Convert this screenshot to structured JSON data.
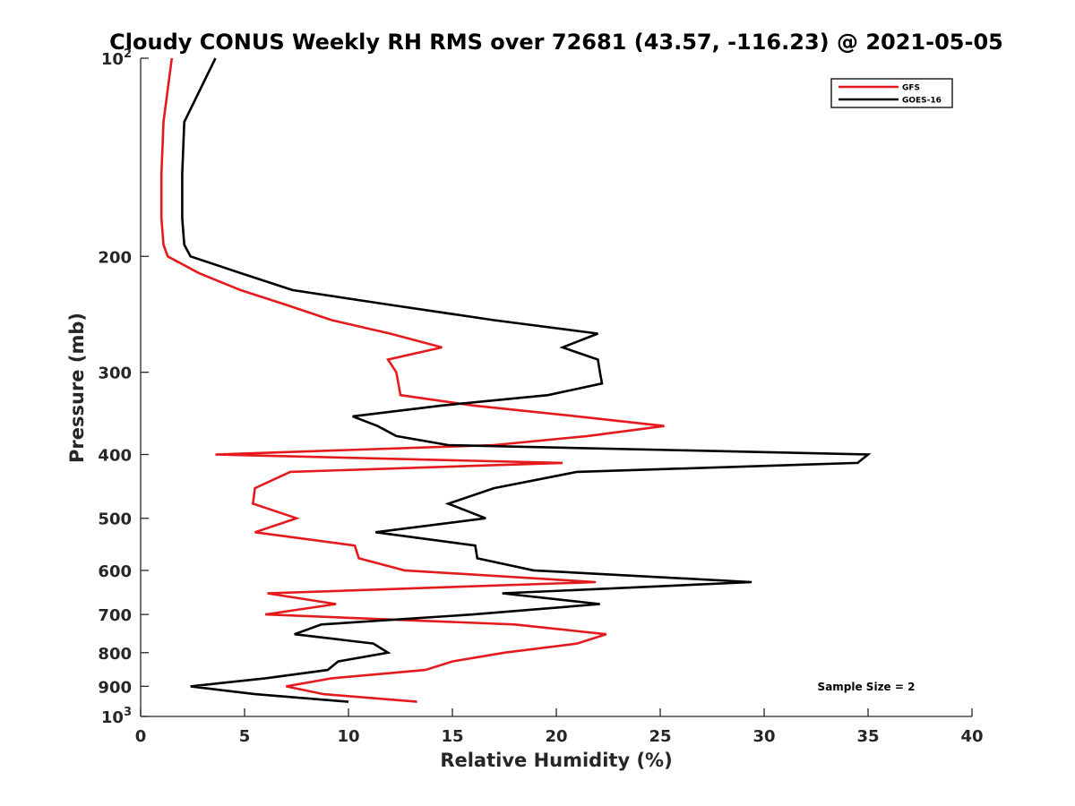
{
  "chart_data": {
    "type": "line",
    "title": "Cloudy CONUS Weekly RH RMS over 72681 (43.57, -116.23) @ 2021-05-05",
    "xlabel": "Relative Humidity (%)",
    "ylabel": "Pressure (mb)",
    "xlim": [
      0,
      40
    ],
    "ylim": [
      100,
      1000
    ],
    "yscale": "log",
    "y_direction": "reversed",
    "grid": false,
    "legend_position": "top-right",
    "xticks": [
      "0",
      "5",
      "10",
      "15",
      "20",
      "25",
      "30",
      "35",
      "40"
    ],
    "yticks": [
      {
        "value": 100,
        "label": "10",
        "sup": "2"
      },
      {
        "value": 200,
        "label": "200",
        "sup": ""
      },
      {
        "value": 300,
        "label": "300",
        "sup": ""
      },
      {
        "value": 400,
        "label": "400",
        "sup": ""
      },
      {
        "value": 500,
        "label": "500",
        "sup": ""
      },
      {
        "value": 600,
        "label": "600",
        "sup": ""
      },
      {
        "value": 700,
        "label": "700",
        "sup": ""
      },
      {
        "value": 800,
        "label": "800",
        "sup": ""
      },
      {
        "value": 900,
        "label": "900",
        "sup": ""
      },
      {
        "value": 1000,
        "label": "10",
        "sup": "3"
      }
    ],
    "annotation": "Sample Size = 2",
    "series": [
      {
        "name": "GFS",
        "color": "#e41a1c",
        "points": [
          [
            1.5,
            100
          ],
          [
            1.1,
            125
          ],
          [
            1.0,
            150
          ],
          [
            1.0,
            175
          ],
          [
            1.1,
            192
          ],
          [
            1.3,
            200
          ],
          [
            2.8,
            212
          ],
          [
            4.8,
            225
          ],
          [
            7.0,
            237
          ],
          [
            9.2,
            250
          ],
          [
            12.0,
            262
          ],
          [
            14.5,
            275
          ],
          [
            11.9,
            287
          ],
          [
            12.3,
            300
          ],
          [
            12.4,
            312
          ],
          [
            12.5,
            325
          ],
          [
            16.0,
            337
          ],
          [
            21.0,
            350
          ],
          [
            25.2,
            362
          ],
          [
            21.5,
            375
          ],
          [
            17.0,
            387
          ],
          [
            3.6,
            400
          ],
          [
            20.3,
            412
          ],
          [
            7.2,
            425
          ],
          [
            5.5,
            450
          ],
          [
            5.4,
            475
          ],
          [
            7.5,
            500
          ],
          [
            5.5,
            525
          ],
          [
            10.3,
            550
          ],
          [
            10.5,
            575
          ],
          [
            12.7,
            600
          ],
          [
            21.9,
            625
          ],
          [
            6.1,
            650
          ],
          [
            9.4,
            675
          ],
          [
            6.0,
            700
          ],
          [
            18.0,
            725
          ],
          [
            22.4,
            750
          ],
          [
            21.0,
            775
          ],
          [
            17.5,
            800
          ],
          [
            15.0,
            825
          ],
          [
            13.7,
            850
          ],
          [
            9.2,
            875
          ],
          [
            7.0,
            900
          ],
          [
            8.8,
            925
          ],
          [
            13.3,
            950
          ]
        ]
      },
      {
        "name": "GOES-16",
        "color": "#000000",
        "points": [
          [
            3.6,
            100
          ],
          [
            2.1,
            125
          ],
          [
            2.0,
            150
          ],
          [
            2.0,
            175
          ],
          [
            2.1,
            192
          ],
          [
            2.4,
            200
          ],
          [
            4.8,
            212
          ],
          [
            7.3,
            225
          ],
          [
            12.0,
            237
          ],
          [
            17.0,
            250
          ],
          [
            22.0,
            262
          ],
          [
            20.3,
            275
          ],
          [
            22.0,
            287
          ],
          [
            22.1,
            300
          ],
          [
            22.2,
            312
          ],
          [
            19.6,
            325
          ],
          [
            14.5,
            337
          ],
          [
            10.2,
            350
          ],
          [
            11.4,
            362
          ],
          [
            12.3,
            375
          ],
          [
            14.8,
            387
          ],
          [
            35.0,
            400
          ],
          [
            34.5,
            412
          ],
          [
            21.0,
            425
          ],
          [
            17.0,
            450
          ],
          [
            14.8,
            475
          ],
          [
            16.6,
            500
          ],
          [
            11.3,
            525
          ],
          [
            16.1,
            550
          ],
          [
            16.2,
            575
          ],
          [
            18.9,
            600
          ],
          [
            29.4,
            625
          ],
          [
            17.4,
            650
          ],
          [
            22.1,
            675
          ],
          [
            16.0,
            700
          ],
          [
            8.7,
            725
          ],
          [
            7.4,
            750
          ],
          [
            11.2,
            775
          ],
          [
            11.9,
            800
          ],
          [
            9.5,
            825
          ],
          [
            9.0,
            850
          ],
          [
            6.0,
            875
          ],
          [
            2.4,
            900
          ],
          [
            5.5,
            925
          ],
          [
            10.0,
            950
          ]
        ]
      }
    ]
  }
}
